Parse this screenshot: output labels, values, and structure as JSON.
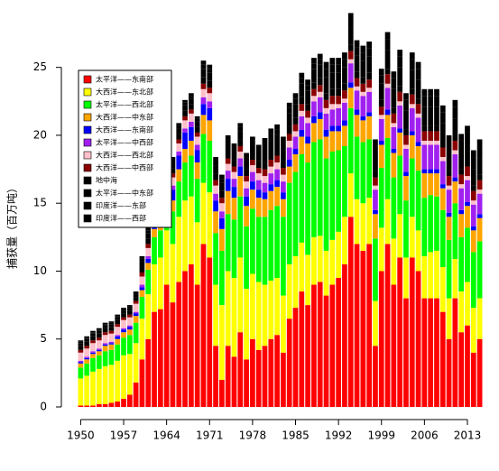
{
  "chart_data": {
    "type": "stacked-bar",
    "y_label": "捕获量（百万吨）",
    "categories": [
      "1950",
      null,
      null,
      null,
      null,
      null,
      null,
      "1957",
      null,
      null,
      null,
      null,
      null,
      null,
      "1964",
      null,
      null,
      null,
      null,
      null,
      null,
      "1971",
      null,
      null,
      null,
      null,
      null,
      null,
      "1978",
      null,
      null,
      null,
      null,
      null,
      null,
      "1985",
      null,
      null,
      null,
      null,
      null,
      null,
      "1992",
      null,
      null,
      null,
      null,
      null,
      null,
      "1999",
      null,
      null,
      null,
      null,
      null,
      null,
      "2006",
      null,
      null,
      null,
      null,
      null,
      null,
      "2013",
      null,
      null
    ],
    "ylim": [
      0,
      28.5
    ],
    "yticks": [
      0,
      5,
      10,
      15,
      20,
      25
    ],
    "grid": false,
    "legend": "top-left",
    "series": [
      {
        "name": "太平洋——东南部",
        "color": "#ff0000",
        "values": [
          0.1,
          0.1,
          0.1,
          0.2,
          0.2,
          0.3,
          0.4,
          0.6,
          0.9,
          1.8,
          3.5,
          5.0,
          7.0,
          7.2,
          9.0,
          7.7,
          9.2,
          10.0,
          10.5,
          9.0,
          12.0,
          11.0,
          4.5,
          2.0,
          4.5,
          3.7,
          5.5,
          3.5,
          5.0,
          4.2,
          4.5,
          5.0,
          5.3,
          4.0,
          6.5,
          7.3,
          8.5,
          7.5,
          9.0,
          9.2,
          8.2,
          9.0,
          9.5,
          10.5,
          14.0,
          12.0,
          11.5,
          12.0,
          4.5,
          10.0,
          12.0,
          9.0,
          11.0,
          8.0,
          11.0,
          10.0,
          8.0,
          8.0,
          8.0,
          7.0,
          5.0,
          8.0,
          5.5,
          6.0,
          4.0,
          5.0
        ]
      },
      {
        "name": "大西洋——东北部",
        "color": "#ffff00",
        "values": [
          2.0,
          2.2,
          2.5,
          2.6,
          2.8,
          2.8,
          3.0,
          3.2,
          3.0,
          2.9,
          3.0,
          3.3,
          3.5,
          3.8,
          4.0,
          4.3,
          4.8,
          5.2,
          5.0,
          4.6,
          4.5,
          4.8,
          4.5,
          5.5,
          5.5,
          5.8,
          5.5,
          5.2,
          4.8,
          5.0,
          4.5,
          4.3,
          4.2,
          4.2,
          4.0,
          3.8,
          3.6,
          3.7,
          3.5,
          3.4,
          3.3,
          3.3,
          3.4,
          3.5,
          3.2,
          3.3,
          3.5,
          3.4,
          3.3,
          3.2,
          3.3,
          3.4,
          3.2,
          3.0,
          3.0,
          3.0,
          3.1,
          3.4,
          3.5,
          3.3,
          3.0,
          2.9,
          3.0,
          3.2,
          3.3,
          3.0
        ]
      },
      {
        "name": "太平洋——西北部",
        "color": "#00ff00",
        "values": [
          0.8,
          0.9,
          1.0,
          1.0,
          1.1,
          1.1,
          1.2,
          1.3,
          1.4,
          1.5,
          1.6,
          1.8,
          2.0,
          2.0,
          2.2,
          2.4,
          2.6,
          2.8,
          3.0,
          3.2,
          3.6,
          3.8,
          3.8,
          4.0,
          4.2,
          4.3,
          4.5,
          4.6,
          4.8,
          4.8,
          5.0,
          5.2,
          5.3,
          5.8,
          6.0,
          6.2,
          6.5,
          6.8,
          7.0,
          7.1,
          6.8,
          6.5,
          6.0,
          5.2,
          4.8,
          4.6,
          4.5,
          4.3,
          4.6,
          4.4,
          4.5,
          4.5,
          4.3,
          4.2,
          4.3,
          4.4,
          4.3,
          4.2,
          4.0,
          4.2,
          4.3,
          4.1,
          4.0,
          4.0,
          4.1,
          4.2
        ]
      },
      {
        "name": "大西洋——中东部",
        "color": "#ffa500",
        "values": [
          0.3,
          0.3,
          0.3,
          0.3,
          0.4,
          0.4,
          0.4,
          0.4,
          0.4,
          0.5,
          0.5,
          0.5,
          0.6,
          0.6,
          0.7,
          0.8,
          0.9,
          1.0,
          1.1,
          1.2,
          1.4,
          1.5,
          1.6,
          1.6,
          1.7,
          1.6,
          1.5,
          1.5,
          1.4,
          1.4,
          1.3,
          1.4,
          1.4,
          1.3,
          1.2,
          1.3,
          1.3,
          1.4,
          1.4,
          1.5,
          1.6,
          1.5,
          1.4,
          1.5,
          1.5,
          1.6,
          1.6,
          1.7,
          1.8,
          1.7,
          1.7,
          1.8,
          1.7,
          1.8,
          1.7,
          1.8,
          1.8,
          1.6,
          1.7,
          1.6,
          1.7,
          1.6,
          1.7,
          1.6,
          1.6,
          1.7
        ]
      },
      {
        "name": "大西洋——东南部",
        "color": "#0000ff",
        "values": [
          0.1,
          0.1,
          0.1,
          0.1,
          0.1,
          0.1,
          0.2,
          0.2,
          0.2,
          0.2,
          0.2,
          0.3,
          0.4,
          0.5,
          0.6,
          0.8,
          1.0,
          1.2,
          1.0,
          0.9,
          0.8,
          0.9,
          0.8,
          0.8,
          0.9,
          0.8,
          0.7,
          0.7,
          0.6,
          0.6,
          0.5,
          0.5,
          0.5,
          0.5,
          0.5,
          0.4,
          0.5,
          0.5,
          0.5,
          0.5,
          0.5,
          0.4,
          0.4,
          0.4,
          0.4,
          0.4,
          0.3,
          0.3,
          0.3,
          0.3,
          0.4,
          0.3,
          0.3,
          0.3,
          0.3,
          0.3,
          0.3,
          0.3,
          0.3,
          0.3,
          0.3,
          0.3,
          0.3,
          0.3,
          0.3,
          0.3
        ]
      },
      {
        "name": "太平洋——中西部",
        "color": "#a020f0",
        "values": [
          0.1,
          0.1,
          0.1,
          0.1,
          0.1,
          0.1,
          0.1,
          0.1,
          0.1,
          0.1,
          0.2,
          0.2,
          0.2,
          0.2,
          0.3,
          0.3,
          0.3,
          0.3,
          0.4,
          0.4,
          0.5,
          0.5,
          0.5,
          0.5,
          0.6,
          0.6,
          0.6,
          0.6,
          0.7,
          0.7,
          0.7,
          0.8,
          0.8,
          0.8,
          0.9,
          0.9,
          1.0,
          1.0,
          1.1,
          1.1,
          1.2,
          1.2,
          1.3,
          1.3,
          1.4,
          1.4,
          1.5,
          1.5,
          1.5,
          1.6,
          1.6,
          1.6,
          1.7,
          1.7,
          1.7,
          1.8,
          1.8,
          1.8,
          1.8,
          1.7,
          1.7,
          1.7,
          1.6,
          1.6,
          1.6,
          1.5
        ]
      },
      {
        "name": "大西洋——西北部",
        "color": "#ffc0cb",
        "values": [
          0.6,
          0.6,
          0.6,
          0.6,
          0.6,
          0.6,
          0.6,
          0.6,
          0.6,
          0.6,
          0.6,
          0.6,
          0.6,
          0.6,
          0.6,
          0.6,
          0.6,
          0.6,
          0.6,
          0.6,
          0.6,
          0.6,
          0.6,
          0.6,
          0.5,
          0.5,
          0.5,
          0.5,
          0.5,
          0.5,
          0.5,
          0.5,
          0.5,
          0.5,
          0.5,
          0.4,
          0.4,
          0.4,
          0.4,
          0.4,
          0.4,
          0.4,
          0.3,
          0.3,
          0.3,
          0.3,
          0.3,
          0.3,
          0.3,
          0.3,
          0.3,
          0.3,
          0.3,
          0.3,
          0.3,
          0.3,
          0.3,
          0.3,
          0.3,
          0.3,
          0.3,
          0.3,
          0.3,
          0.3,
          0.3,
          0.3
        ]
      },
      {
        "name": "大西洋——中西部",
        "color": "#8b0000",
        "values": [
          0.2,
          0.2,
          0.2,
          0.2,
          0.2,
          0.2,
          0.2,
          0.2,
          0.2,
          0.2,
          0.3,
          0.3,
          0.3,
          0.3,
          0.3,
          0.3,
          0.3,
          0.3,
          0.3,
          0.3,
          0.4,
          0.4,
          0.4,
          0.4,
          0.4,
          0.4,
          0.4,
          0.4,
          0.4,
          0.4,
          0.5,
          0.5,
          0.5,
          0.5,
          0.5,
          0.5,
          0.5,
          0.5,
          0.5,
          0.5,
          0.6,
          0.6,
          0.6,
          0.6,
          0.6,
          0.6,
          0.6,
          0.6,
          0.6,
          0.6,
          0.7,
          0.7,
          0.7,
          0.7,
          0.7,
          0.7,
          0.7,
          0.7,
          0.7,
          0.7,
          0.7,
          0.7,
          0.7,
          0.7,
          0.7,
          0.7
        ]
      },
      {
        "name": "地中海",
        "color": "#000000",
        "values": [
          0.3,
          0.3,
          0.3,
          0.3,
          0.3,
          0.3,
          0.3,
          0.3,
          0.3,
          0.3,
          0.4,
          0.4,
          0.4,
          0.4,
          0.4,
          0.4,
          0.4,
          0.4,
          0.4,
          0.4,
          0.5,
          0.5,
          0.5,
          0.5,
          0.5,
          0.5,
          0.5,
          0.5,
          0.5,
          0.5,
          0.5,
          0.5,
          0.5,
          0.5,
          0.5,
          0.5,
          0.5,
          0.5,
          0.5,
          0.5,
          0.5,
          0.5,
          0.5,
          0.5,
          0.5,
          0.5,
          0.5,
          0.5,
          0.5,
          0.5,
          0.4,
          0.4,
          0.4,
          0.4,
          0.4,
          0.4,
          0.4,
          0.4,
          0.4,
          0.4,
          0.4,
          0.4,
          0.4,
          0.4,
          0.4,
          0.4
        ]
      },
      {
        "name": "太平洋——中东部",
        "color": "#000000",
        "values": [
          0.2,
          0.2,
          0.2,
          0.2,
          0.2,
          0.2,
          0.2,
          0.2,
          0.2,
          0.2,
          0.4,
          0.4,
          0.4,
          0.4,
          0.4,
          0.4,
          0.4,
          0.4,
          0.4,
          0.4,
          0.6,
          0.6,
          0.6,
          0.6,
          0.6,
          0.6,
          0.6,
          0.6,
          0.6,
          0.6,
          1.0,
          1.0,
          1.0,
          1.0,
          1.0,
          1.0,
          1.0,
          1.0,
          1.0,
          1.0,
          1.2,
          1.2,
          1.2,
          1.2,
          1.2,
          1.2,
          1.2,
          1.2,
          1.2,
          1.2,
          1.4,
          1.4,
          1.4,
          1.4,
          1.4,
          1.4,
          1.4,
          1.4,
          1.4,
          1.4,
          1.2,
          1.2,
          1.2,
          1.2,
          1.2,
          1.2
        ]
      },
      {
        "name": "印度洋——东部",
        "color": "#000000",
        "values": [
          0.1,
          0.1,
          0.1,
          0.1,
          0.1,
          0.1,
          0.1,
          0.1,
          0.1,
          0.1,
          0.2,
          0.2,
          0.2,
          0.2,
          0.2,
          0.2,
          0.2,
          0.2,
          0.2,
          0.2,
          0.3,
          0.3,
          0.3,
          0.3,
          0.3,
          0.3,
          0.3,
          0.3,
          0.3,
          0.3,
          0.4,
          0.4,
          0.4,
          0.4,
          0.4,
          0.4,
          0.4,
          0.4,
          0.4,
          0.4,
          0.6,
          0.6,
          0.6,
          0.6,
          0.6,
          0.6,
          0.6,
          0.6,
          0.6,
          0.6,
          0.8,
          0.8,
          0.8,
          0.8,
          0.8,
          0.8,
          0.8,
          0.8,
          0.8,
          0.8,
          0.9,
          0.9,
          0.9,
          0.9,
          0.9,
          0.9
        ]
      },
      {
        "name": "印度洋——西部",
        "color": "#000000",
        "values": [
          0.1,
          0.1,
          0.1,
          0.1,
          0.1,
          0.1,
          0.1,
          0.1,
          0.1,
          0.1,
          0.2,
          0.2,
          0.2,
          0.2,
          0.2,
          0.2,
          0.2,
          0.2,
          0.2,
          0.2,
          0.3,
          0.3,
          0.3,
          0.3,
          0.3,
          0.3,
          0.3,
          0.3,
          0.3,
          0.3,
          0.4,
          0.4,
          0.4,
          0.4,
          0.4,
          0.4,
          0.4,
          0.4,
          0.4,
          0.4,
          0.5,
          0.5,
          0.5,
          0.5,
          0.5,
          0.5,
          0.5,
          0.5,
          0.5,
          0.5,
          0.5,
          0.5,
          0.5,
          0.5,
          0.5,
          0.5,
          0.5,
          0.5,
          0.5,
          0.5,
          0.5,
          0.5,
          0.5,
          0.5,
          0.5,
          0.5
        ]
      }
    ]
  }
}
